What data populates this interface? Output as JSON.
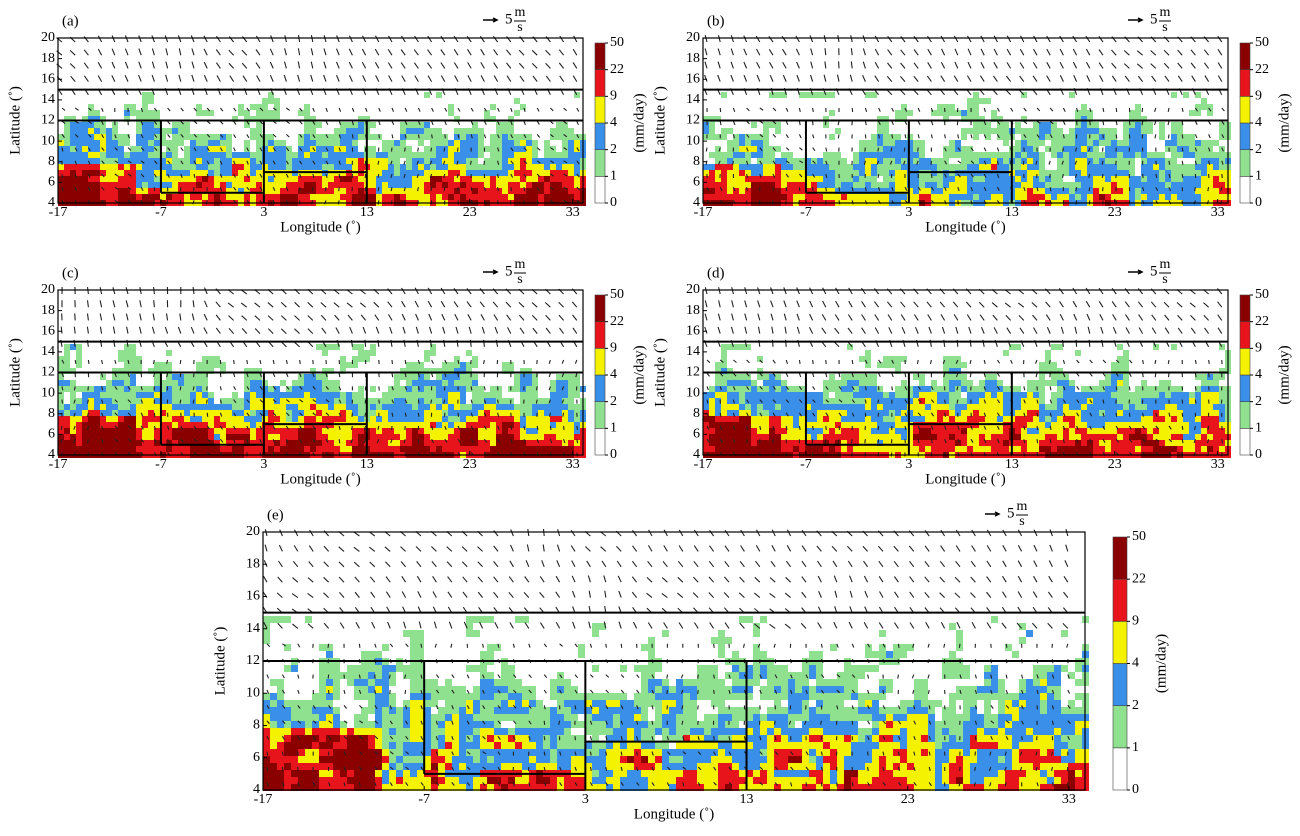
{
  "panels": [
    {
      "label": "(a)"
    },
    {
      "label": "(b)"
    },
    {
      "label": "(c)"
    },
    {
      "label": "(d)"
    },
    {
      "label": "(e)"
    }
  ],
  "axes": {
    "xlabel": "Longitude (˚)",
    "ylabel": "Latitude (˚)",
    "xlim": [
      -17,
      34
    ],
    "ylim": [
      4,
      20
    ],
    "xticks": [
      -17,
      -7,
      3,
      13,
      23,
      33
    ],
    "yticks": [
      4,
      6,
      8,
      10,
      12,
      14,
      16,
      18,
      20
    ]
  },
  "colorbar": {
    "label": "(mm/day)",
    "ticks": [
      0,
      1,
      2,
      4,
      9,
      22,
      50
    ],
    "colors": [
      "#ffffff",
      "#8fe08f",
      "#3a8fe8",
      "#f5f200",
      "#e8141c",
      "#8a0000"
    ]
  },
  "reference_vector": {
    "value": 5,
    "numerator": "m",
    "denominator": "s"
  }
}
